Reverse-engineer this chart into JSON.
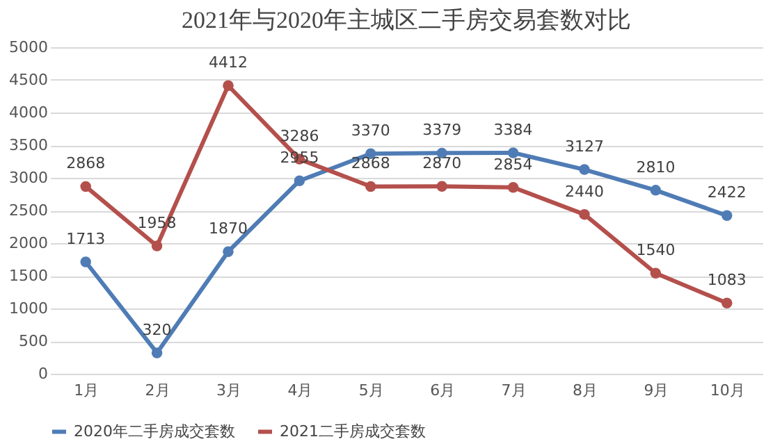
{
  "chart_data": {
    "type": "line",
    "title": "2021年与2020年主城区二手房交易套数对比",
    "categories": [
      "1月",
      "2月",
      "3月",
      "4月",
      "5月",
      "6月",
      "7月",
      "8月",
      "9月",
      "10月"
    ],
    "series": [
      {
        "name": "2020年二手房成交套数",
        "color": "#4f7cb5",
        "values": [
          1713,
          320,
          1870,
          2955,
          3370,
          3379,
          3384,
          3127,
          2810,
          2422
        ]
      },
      {
        "name": "2021二手房成交套数",
        "color": "#b4504c",
        "values": [
          2868,
          1958,
          4412,
          3286,
          2868,
          2870,
          2854,
          2440,
          1540,
          1083
        ]
      }
    ],
    "ylim": [
      0,
      5000
    ],
    "yticks": [
      0,
      500,
      1000,
      1500,
      2000,
      2500,
      3000,
      3500,
      4000,
      4500,
      5000
    ],
    "grid": "y",
    "legend": "bottom",
    "marker": "circle",
    "line_style": "solid",
    "data_labels": true
  }
}
